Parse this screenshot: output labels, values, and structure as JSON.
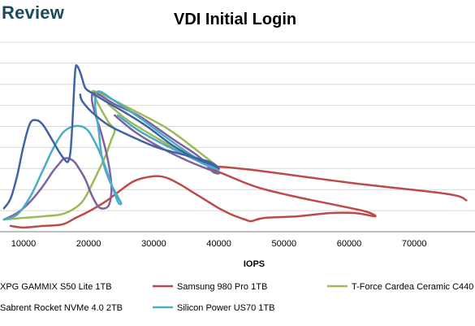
{
  "brand": "Review",
  "chart_data": {
    "type": "line",
    "title": "VDI Initial Login",
    "xlabel": "IOPS",
    "ylabel": "",
    "xlim": [
      7000,
      78000
    ],
    "x_ticks": [
      10000,
      20000,
      30000,
      40000,
      50000,
      60000,
      70000
    ],
    "ylim": [
      0,
      1
    ],
    "grid": true,
    "series": [
      {
        "name": "XPG GAMMIX S50 Lite 1TB",
        "color": "#3f63a6",
        "x": [
          7000,
          8000,
          9000,
          10000,
          11000,
          12000,
          13000,
          14500,
          15500,
          16200,
          16800,
          17200,
          17500,
          17800,
          18000,
          18200,
          18600,
          19000,
          19500,
          20500,
          22500,
          25500,
          29000,
          33000,
          36500,
          39000,
          40000,
          38500,
          35000,
          30500,
          26500,
          23000,
          20500,
          19000,
          18700
        ],
        "y": [
          0.07,
          0.13,
          0.27,
          0.46,
          0.6,
          0.62,
          0.59,
          0.49,
          0.42,
          0.38,
          0.36,
          0.42,
          0.6,
          0.85,
          0.95,
          0.96,
          0.93,
          0.88,
          0.82,
          0.79,
          0.74,
          0.67,
          0.58,
          0.46,
          0.38,
          0.34,
          0.32,
          0.36,
          0.4,
          0.45,
          0.52,
          0.59,
          0.67,
          0.74,
          0.78
        ]
      },
      {
        "name": "Samsung 980 Pro 1TB",
        "color": "#bd4a48",
        "x": [
          8000,
          10000,
          13000,
          16000,
          18000,
          20000,
          22500,
          24500,
          27000,
          30000,
          32000,
          34000,
          36000,
          38000,
          40000,
          42000,
          44000,
          45000,
          47000,
          52000,
          57000,
          61000,
          64000,
          62500,
          58000,
          52000,
          46000,
          41000,
          38500,
          45000,
          60000,
          75000,
          78000
        ],
        "y": [
          -0.04,
          -0.05,
          -0.04,
          -0.03,
          0.01,
          0.05,
          0.11,
          0.17,
          0.24,
          0.27,
          0.26,
          0.22,
          0.17,
          0.12,
          0.07,
          0.03,
          0.0,
          -0.01,
          0.01,
          0.02,
          0.04,
          0.04,
          0.02,
          0.05,
          0.09,
          0.14,
          0.2,
          0.28,
          0.33,
          0.31,
          0.23,
          0.16,
          0.12
        ]
      },
      {
        "name": "T-Force Cardea Ceramic C440",
        "color": "#9bbb59",
        "x": [
          7000,
          10000,
          13000,
          15500,
          17000,
          18500,
          19500,
          21000,
          22500,
          23500,
          24000,
          23000,
          21000,
          21000,
          26000,
          32000,
          37000,
          40000,
          38000,
          34000,
          30000,
          26000,
          23000
        ],
        "y": [
          0.0,
          0.01,
          0.02,
          0.03,
          0.05,
          0.09,
          0.14,
          0.26,
          0.39,
          0.5,
          0.56,
          0.61,
          0.76,
          0.8,
          0.7,
          0.57,
          0.42,
          0.32,
          0.36,
          0.43,
          0.52,
          0.62,
          0.72
        ]
      },
      {
        "name": "Sabrent Rocket NVMe 4.0 2TB",
        "color": "#7f61a0",
        "x": [
          7000,
          9000,
          11000,
          13000,
          14500,
          15500,
          16200,
          17000,
          17800,
          18500,
          19500,
          20500,
          21500,
          22500,
          23200,
          23500,
          23000,
          22000,
          21000,
          20500,
          21000,
          24000,
          28000,
          33000,
          37000,
          39000,
          40000,
          38000,
          35000,
          31000,
          27000,
          24000
        ],
        "y": [
          0.0,
          0.04,
          0.11,
          0.21,
          0.3,
          0.35,
          0.38,
          0.38,
          0.36,
          0.32,
          0.25,
          0.15,
          0.08,
          0.07,
          0.1,
          0.2,
          0.36,
          0.53,
          0.66,
          0.75,
          0.79,
          0.72,
          0.64,
          0.5,
          0.39,
          0.3,
          0.29,
          0.32,
          0.37,
          0.45,
          0.55,
          0.65
        ]
      },
      {
        "name": "Silicon Power US70 1TB",
        "color": "#4bacc6",
        "x": [
          7000,
          9000,
          11000,
          13000,
          14500,
          16000,
          17500,
          19000,
          20000,
          21000,
          22000,
          23500,
          24500,
          25000,
          24500,
          23000,
          22000,
          21500,
          21000,
          21500,
          24000,
          28000,
          32000,
          35500,
          38000,
          40000,
          38000,
          35000,
          31000,
          27500,
          24500
        ],
        "y": [
          0.0,
          0.03,
          0.14,
          0.31,
          0.44,
          0.54,
          0.58,
          0.58,
          0.55,
          0.48,
          0.39,
          0.22,
          0.11,
          0.1,
          0.14,
          0.26,
          0.4,
          0.57,
          0.72,
          0.8,
          0.74,
          0.63,
          0.51,
          0.41,
          0.35,
          0.31,
          0.34,
          0.4,
          0.48,
          0.56,
          0.65
        ]
      }
    ]
  }
}
